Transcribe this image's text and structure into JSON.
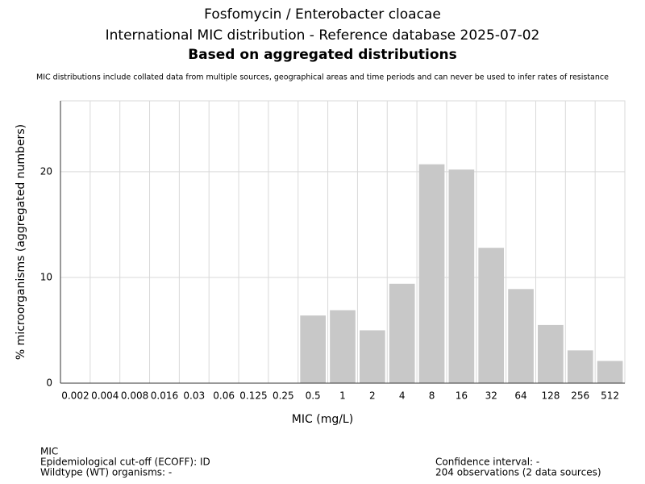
{
  "chart_data": {
    "type": "bar",
    "title": "Fosfomycin / Enterobacter cloacae",
    "subtitle": "International MIC distribution - Reference database 2025-07-02",
    "heading": "Based on aggregated distributions",
    "note": "MIC distributions include collated data from multiple sources, geographical areas and time periods and can never be used to infer rates of resistance",
    "x_label": "MIC (mg/L)",
    "y_label": "% microorganisms (aggregated numbers)",
    "categories": [
      "0.002",
      "0.004",
      "0.008",
      "0.016",
      "0.03",
      "0.06",
      "0.125",
      "0.25",
      "0.5",
      "1",
      "2",
      "4",
      "8",
      "16",
      "32",
      "64",
      "128",
      "256",
      "512"
    ],
    "values": [
      0,
      0,
      0,
      0,
      0,
      0,
      0,
      0,
      6.4,
      6.9,
      5.0,
      9.4,
      20.7,
      20.2,
      12.8,
      8.9,
      5.5,
      3.1,
      2.1
    ],
    "color": "#c8c8c8",
    "ylim": [
      0,
      26.7
    ],
    "yticks": [
      0,
      10,
      20
    ],
    "grid": true,
    "footer_left": [
      "MIC",
      "Epidemiological cut-off (ECOFF): ID",
      "Wildtype (WT) organisms:  -"
    ],
    "footer_right": [
      "Confidence interval: -",
      "204 observations (2 data sources)"
    ]
  }
}
